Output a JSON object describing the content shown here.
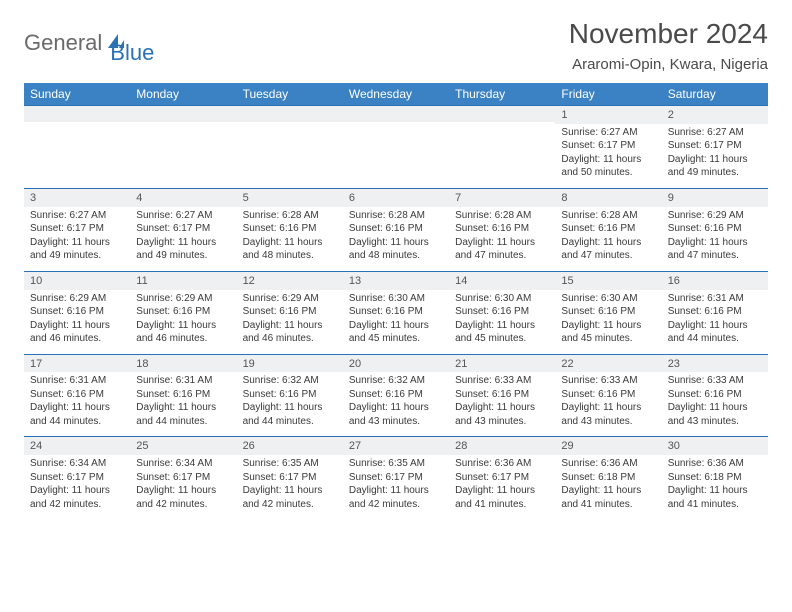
{
  "logo": {
    "grey": "General",
    "blue": "Blue"
  },
  "title": "November 2024",
  "location": "Araromi-Opin, Kwara, Nigeria",
  "colors": {
    "header_bg": "#3b82c4",
    "header_text": "#ffffff",
    "row_border": "#2a72b5",
    "daynum_bg": "#eef0f2",
    "body_text": "#3a3a3a",
    "logo_grey": "#6a6a6a",
    "logo_blue": "#2a72b5"
  },
  "weekdays": [
    "Sunday",
    "Monday",
    "Tuesday",
    "Wednesday",
    "Thursday",
    "Friday",
    "Saturday"
  ],
  "weeks": [
    [
      null,
      null,
      null,
      null,
      null,
      {
        "n": "1",
        "sr": "6:27 AM",
        "ss": "6:17 PM",
        "dl": "11 hours and 50 minutes."
      },
      {
        "n": "2",
        "sr": "6:27 AM",
        "ss": "6:17 PM",
        "dl": "11 hours and 49 minutes."
      }
    ],
    [
      {
        "n": "3",
        "sr": "6:27 AM",
        "ss": "6:17 PM",
        "dl": "11 hours and 49 minutes."
      },
      {
        "n": "4",
        "sr": "6:27 AM",
        "ss": "6:17 PM",
        "dl": "11 hours and 49 minutes."
      },
      {
        "n": "5",
        "sr": "6:28 AM",
        "ss": "6:16 PM",
        "dl": "11 hours and 48 minutes."
      },
      {
        "n": "6",
        "sr": "6:28 AM",
        "ss": "6:16 PM",
        "dl": "11 hours and 48 minutes."
      },
      {
        "n": "7",
        "sr": "6:28 AM",
        "ss": "6:16 PM",
        "dl": "11 hours and 47 minutes."
      },
      {
        "n": "8",
        "sr": "6:28 AM",
        "ss": "6:16 PM",
        "dl": "11 hours and 47 minutes."
      },
      {
        "n": "9",
        "sr": "6:29 AM",
        "ss": "6:16 PM",
        "dl": "11 hours and 47 minutes."
      }
    ],
    [
      {
        "n": "10",
        "sr": "6:29 AM",
        "ss": "6:16 PM",
        "dl": "11 hours and 46 minutes."
      },
      {
        "n": "11",
        "sr": "6:29 AM",
        "ss": "6:16 PM",
        "dl": "11 hours and 46 minutes."
      },
      {
        "n": "12",
        "sr": "6:29 AM",
        "ss": "6:16 PM",
        "dl": "11 hours and 46 minutes."
      },
      {
        "n": "13",
        "sr": "6:30 AM",
        "ss": "6:16 PM",
        "dl": "11 hours and 45 minutes."
      },
      {
        "n": "14",
        "sr": "6:30 AM",
        "ss": "6:16 PM",
        "dl": "11 hours and 45 minutes."
      },
      {
        "n": "15",
        "sr": "6:30 AM",
        "ss": "6:16 PM",
        "dl": "11 hours and 45 minutes."
      },
      {
        "n": "16",
        "sr": "6:31 AM",
        "ss": "6:16 PM",
        "dl": "11 hours and 44 minutes."
      }
    ],
    [
      {
        "n": "17",
        "sr": "6:31 AM",
        "ss": "6:16 PM",
        "dl": "11 hours and 44 minutes."
      },
      {
        "n": "18",
        "sr": "6:31 AM",
        "ss": "6:16 PM",
        "dl": "11 hours and 44 minutes."
      },
      {
        "n": "19",
        "sr": "6:32 AM",
        "ss": "6:16 PM",
        "dl": "11 hours and 44 minutes."
      },
      {
        "n": "20",
        "sr": "6:32 AM",
        "ss": "6:16 PM",
        "dl": "11 hours and 43 minutes."
      },
      {
        "n": "21",
        "sr": "6:33 AM",
        "ss": "6:16 PM",
        "dl": "11 hours and 43 minutes."
      },
      {
        "n": "22",
        "sr": "6:33 AM",
        "ss": "6:16 PM",
        "dl": "11 hours and 43 minutes."
      },
      {
        "n": "23",
        "sr": "6:33 AM",
        "ss": "6:16 PM",
        "dl": "11 hours and 43 minutes."
      }
    ],
    [
      {
        "n": "24",
        "sr": "6:34 AM",
        "ss": "6:17 PM",
        "dl": "11 hours and 42 minutes."
      },
      {
        "n": "25",
        "sr": "6:34 AM",
        "ss": "6:17 PM",
        "dl": "11 hours and 42 minutes."
      },
      {
        "n": "26",
        "sr": "6:35 AM",
        "ss": "6:17 PM",
        "dl": "11 hours and 42 minutes."
      },
      {
        "n": "27",
        "sr": "6:35 AM",
        "ss": "6:17 PM",
        "dl": "11 hours and 42 minutes."
      },
      {
        "n": "28",
        "sr": "6:36 AM",
        "ss": "6:17 PM",
        "dl": "11 hours and 41 minutes."
      },
      {
        "n": "29",
        "sr": "6:36 AM",
        "ss": "6:18 PM",
        "dl": "11 hours and 41 minutes."
      },
      {
        "n": "30",
        "sr": "6:36 AM",
        "ss": "6:18 PM",
        "dl": "11 hours and 41 minutes."
      }
    ]
  ],
  "labels": {
    "sunrise": "Sunrise:",
    "sunset": "Sunset:",
    "daylight": "Daylight:"
  }
}
